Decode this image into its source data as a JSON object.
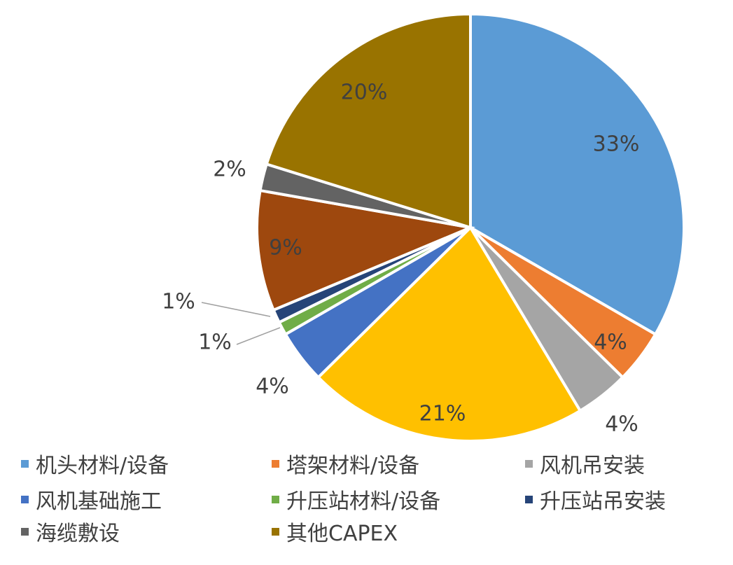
{
  "chart_data": {
    "type": "pie",
    "start_angle": "12 o'clock",
    "direction": "clockwise",
    "slices": [
      {
        "name": "机头材料/设备",
        "value": 33,
        "label": "33%",
        "color": "#5B9BD5"
      },
      {
        "name": "塔架材料/设备",
        "value": 4,
        "label": "4%",
        "color": "#ED7D31"
      },
      {
        "name": "风机吊安装",
        "value": 4,
        "label": "4%",
        "color": "#A5A5A5"
      },
      {
        "value": 21,
        "label": "21%",
        "color": "#FFC000"
      },
      {
        "name": "风机基础施工",
        "value": 4,
        "label": "4%",
        "color": "#4472C4"
      },
      {
        "name": "升压站材料/设备",
        "value": 1,
        "label": "1%",
        "color": "#70AD47"
      },
      {
        "name": "升压站吊安装",
        "value": 1,
        "label": "1%",
        "color": "#264478"
      },
      {
        "value": 9,
        "label": "9%",
        "color": "#9E480E"
      },
      {
        "name": "海缆敷设",
        "value": 2,
        "label": "2%",
        "color": "#636363"
      },
      {
        "name": "其他CAPEX",
        "value": 20,
        "label": "20%",
        "color": "#997300"
      }
    ],
    "legend": {
      "placement": "bottom",
      "entries": [
        {
          "label": "机头材料/设备",
          "color": "#5B9BD5"
        },
        {
          "label": "塔架材料/设备",
          "color": "#ED7D31"
        },
        {
          "label": "风机吊安装",
          "color": "#A5A5A5"
        },
        {
          "label": "风机基础施工",
          "color": "#4472C4"
        },
        {
          "label": "升压站材料/设备",
          "color": "#70AD47"
        },
        {
          "label": "升压站吊安装",
          "color": "#264478"
        },
        {
          "label": "海缆敷设",
          "color": "#636363"
        },
        {
          "label": "其他CAPEX",
          "color": "#997300"
        }
      ]
    }
  }
}
